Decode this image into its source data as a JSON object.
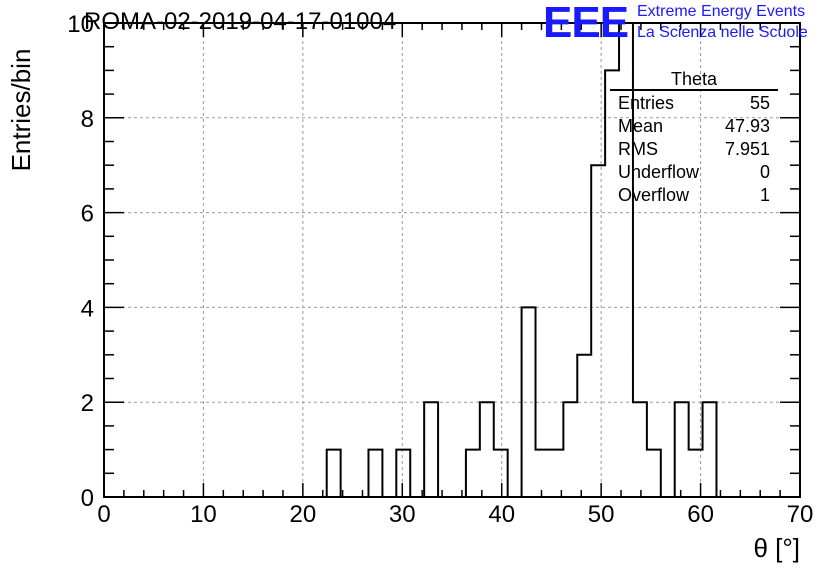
{
  "title": "ROMA-02-2019-04-17-01004",
  "logo": {
    "mark": "EEE",
    "line1": "Extreme Energy Events",
    "line2": "La Scienza nelle Scuole"
  },
  "stats_box": {
    "title": "Theta",
    "rows": [
      {
        "label": "Entries",
        "value": "55"
      },
      {
        "label": "Mean",
        "value": "47.93"
      },
      {
        "label": "RMS",
        "value": "7.951"
      },
      {
        "label": "Underflow",
        "value": "0"
      },
      {
        "label": "Overflow",
        "value": "1"
      }
    ]
  },
  "chart_data": {
    "type": "bar",
    "style": "step-histogram",
    "title": "ROMA-02-2019-04-17-01004",
    "xlabel": "θ [°]",
    "ylabel": "Entries/bin",
    "xlim": [
      0,
      70
    ],
    "ylim": [
      0,
      10
    ],
    "bin_width": 1.4,
    "xticks": [
      0,
      10,
      20,
      30,
      40,
      50,
      60,
      70
    ],
    "yticks": [
      0,
      2,
      4,
      6,
      8,
      10
    ],
    "grid": true,
    "line_color": "#000000",
    "bins": [
      {
        "x": 22.4,
        "count": 1
      },
      {
        "x": 23.8,
        "count": 0
      },
      {
        "x": 25.2,
        "count": 0
      },
      {
        "x": 26.6,
        "count": 1
      },
      {
        "x": 28.0,
        "count": 0
      },
      {
        "x": 29.4,
        "count": 1
      },
      {
        "x": 30.8,
        "count": 0
      },
      {
        "x": 32.2,
        "count": 2
      },
      {
        "x": 33.6,
        "count": 0
      },
      {
        "x": 35.0,
        "count": 0
      },
      {
        "x": 36.4,
        "count": 1
      },
      {
        "x": 37.8,
        "count": 2
      },
      {
        "x": 39.2,
        "count": 1
      },
      {
        "x": 40.6,
        "count": 0
      },
      {
        "x": 42.0,
        "count": 4
      },
      {
        "x": 43.4,
        "count": 1
      },
      {
        "x": 44.8,
        "count": 1
      },
      {
        "x": 46.2,
        "count": 2
      },
      {
        "x": 47.6,
        "count": 3
      },
      {
        "x": 49.0,
        "count": 7
      },
      {
        "x": 50.4,
        "count": 9
      },
      {
        "x": 51.8,
        "count": 10
      },
      {
        "x": 53.2,
        "count": 2
      },
      {
        "x": 54.6,
        "count": 1
      },
      {
        "x": 56.0,
        "count": 0
      },
      {
        "x": 57.4,
        "count": 2
      },
      {
        "x": 58.8,
        "count": 1
      },
      {
        "x": 60.2,
        "count": 2
      }
    ]
  }
}
